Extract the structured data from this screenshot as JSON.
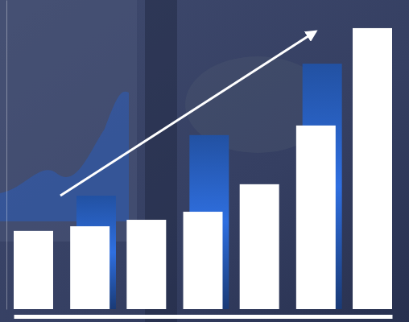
{
  "chart_data": {
    "type": "bar",
    "categories": [
      null,
      null,
      null,
      null,
      null,
      null,
      null
    ],
    "series": [
      {
        "color": "#2f6fe0",
        "values": [
          null,
          36.7,
          null,
          56.3,
          null,
          79.4,
          null
        ]
      },
      {
        "color": "#ffffff",
        "values": [
          25.3,
          26.8,
          28.9,
          31.5,
          40.4,
          59.4,
          90.9
        ]
      }
    ],
    "ylim": [
      0,
      100
    ],
    "tick_labels": false
  }
}
